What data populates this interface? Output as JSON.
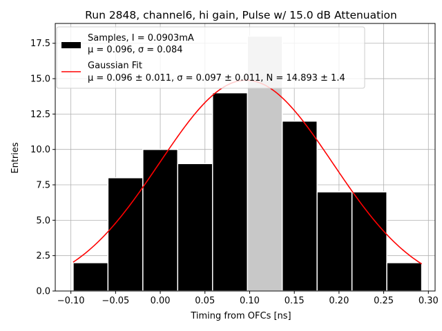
{
  "chart_data": {
    "type": "bar",
    "title": "Run 2848, channel6, hi gain, Pulse w/ 15.0 dB Attenuation",
    "xlabel": "Timing from OFCs [ns]",
    "ylabel": "Entries",
    "xlim": [
      -0.1175,
      0.3075
    ],
    "ylim": [
      0,
      18.9
    ],
    "grid": true,
    "legend_position": "top-left",
    "x_tick_labels": [
      "−0.10",
      "−0.05",
      "0.00",
      "0.05",
      "0.10",
      "0.15",
      "0.20",
      "0.25",
      "0.30"
    ],
    "y_tick_labels": [
      "0.0",
      "2.5",
      "5.0",
      "7.5",
      "10.0",
      "12.5",
      "15.0",
      "17.5"
    ],
    "histogram": {
      "name": "Samples, I = 0.0903mA",
      "stats_label": "μ = 0.096, σ = 0.084",
      "bin_edges": [
        -0.0975,
        -0.0585,
        -0.0195,
        0.0195,
        0.0585,
        0.0975,
        0.1365,
        0.1755,
        0.2145,
        0.2535,
        0.2925
      ],
      "counts": [
        2,
        8,
        10,
        9,
        14,
        18,
        12,
        7,
        7,
        2
      ],
      "color": "#000000",
      "highlight_bin_color": "#c8c8c8"
    },
    "fit": {
      "name": "Gaussian Fit",
      "stats_label": "μ = 0.096 ± 0.011, σ = 0.097 ± 0.011, N = 14.893 ± 1.4",
      "mu": 0.096,
      "sigma": 0.097,
      "peak": 14.893,
      "x_range": [
        -0.0975,
        0.2925
      ],
      "color": "#ff0000"
    }
  }
}
